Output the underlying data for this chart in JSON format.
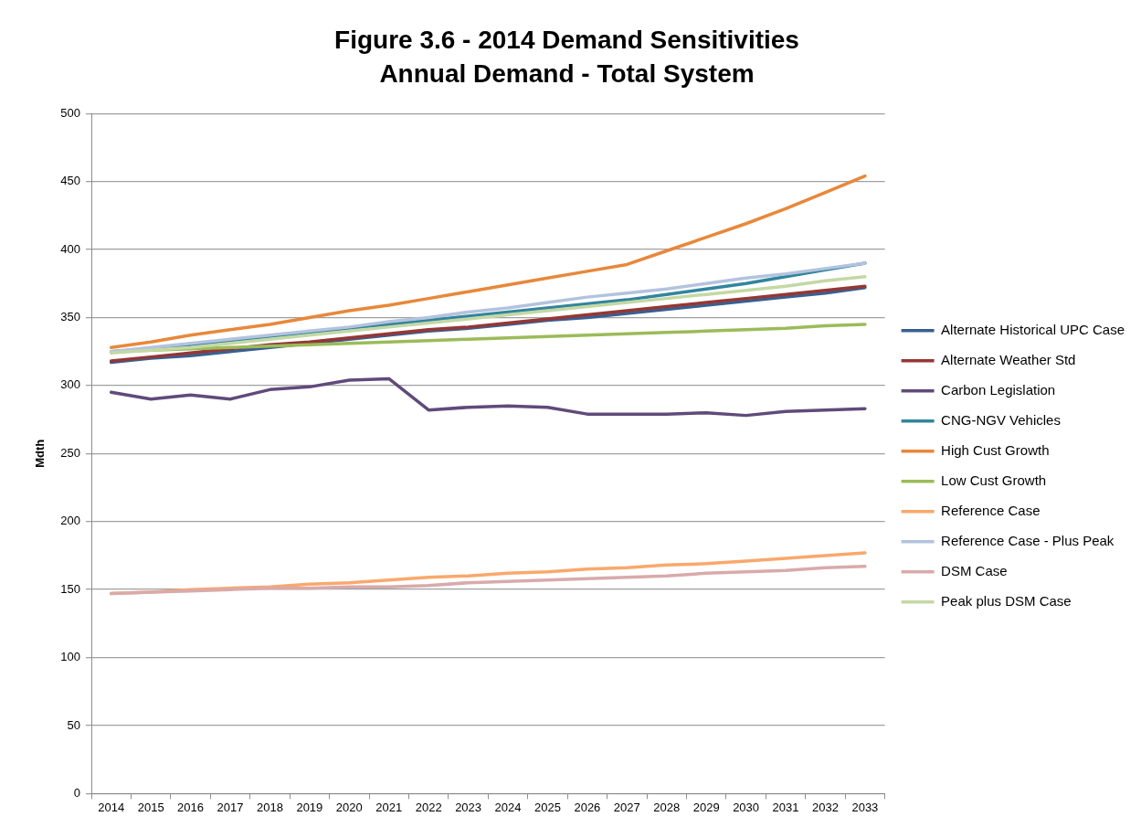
{
  "chart_data": {
    "type": "line",
    "title": "Figure 3.6 - 2014 Demand Sensitivities",
    "subtitle": "Annual Demand - Total System",
    "ylabel": "Mdth",
    "categories": [
      "2014",
      "2015",
      "2016",
      "2017",
      "2018",
      "2019",
      "2020",
      "2021",
      "2022",
      "2023",
      "2024",
      "2025",
      "2026",
      "2027",
      "2028",
      "2029",
      "2030",
      "2031",
      "2032",
      "2033"
    ],
    "series": [
      {
        "name": "Alternate Historical UPC Case",
        "color": "#376092",
        "values": [
          317,
          320,
          322,
          325,
          328,
          331,
          334,
          337,
          340,
          342,
          345,
          348,
          350,
          353,
          356,
          359,
          362,
          365,
          368,
          372
        ]
      },
      {
        "name": "Alternate Weather Std",
        "color": "#953735",
        "values": [
          318,
          321,
          324,
          327,
          330,
          332,
          335,
          338,
          341,
          343,
          346,
          349,
          352,
          355,
          358,
          361,
          364,
          367,
          370,
          373
        ]
      },
      {
        "name": "Carbon Legislation",
        "color": "#604a7b",
        "values": [
          295,
          290,
          293,
          290,
          297,
          299,
          304,
          305,
          282,
          284,
          285,
          284,
          279,
          279,
          279,
          280,
          278,
          281,
          282,
          283
        ]
      },
      {
        "name": "CNG-NGV Vehicles",
        "color": "#31859c",
        "values": [
          325,
          327,
          330,
          333,
          336,
          339,
          342,
          345,
          348,
          351,
          354,
          357,
          360,
          363,
          367,
          371,
          375,
          380,
          385,
          390
        ]
      },
      {
        "name": "High Cust Growth",
        "color": "#e8883a",
        "values": [
          328,
          332,
          337,
          341,
          345,
          350,
          355,
          359,
          364,
          369,
          374,
          379,
          384,
          389,
          399,
          409,
          419,
          430,
          442,
          454
        ]
      },
      {
        "name": "Low Cust Growth",
        "color": "#9bbb59",
        "values": [
          325,
          326,
          327,
          328,
          329,
          330,
          331,
          332,
          333,
          334,
          335,
          336,
          337,
          338,
          339,
          340,
          341,
          342,
          344,
          345
        ]
      },
      {
        "name": "Reference Case",
        "color": "#f9a86c",
        "values": [
          147,
          148,
          150,
          151,
          152,
          154,
          155,
          157,
          159,
          160,
          162,
          163,
          165,
          166,
          168,
          169,
          171,
          173,
          175,
          177
        ]
      },
      {
        "name": "Reference Case - Plus Peak",
        "color": "#b3c3de",
        "values": [
          325,
          328,
          331,
          334,
          337,
          340,
          343,
          347,
          350,
          354,
          357,
          361,
          365,
          368,
          371,
          375,
          379,
          382,
          386,
          390
        ]
      },
      {
        "name": "DSM Case",
        "color": "#d9aaab",
        "values": [
          147,
          148,
          149,
          150,
          151,
          151,
          152,
          152,
          153,
          155,
          156,
          157,
          158,
          159,
          160,
          162,
          163,
          164,
          166,
          167
        ]
      },
      {
        "name": "Peak plus DSM Case",
        "color": "#c4d8a4",
        "values": [
          324,
          326,
          328,
          331,
          334,
          337,
          340,
          343,
          346,
          349,
          352,
          355,
          358,
          361,
          364,
          367,
          370,
          373,
          377,
          380
        ]
      }
    ],
    "ylim": [
      0,
      500
    ],
    "yticks": [
      0,
      50,
      100,
      150,
      200,
      250,
      300,
      350,
      400,
      450,
      500
    ],
    "grid": "y",
    "legend": "right",
    "marker": "none"
  }
}
